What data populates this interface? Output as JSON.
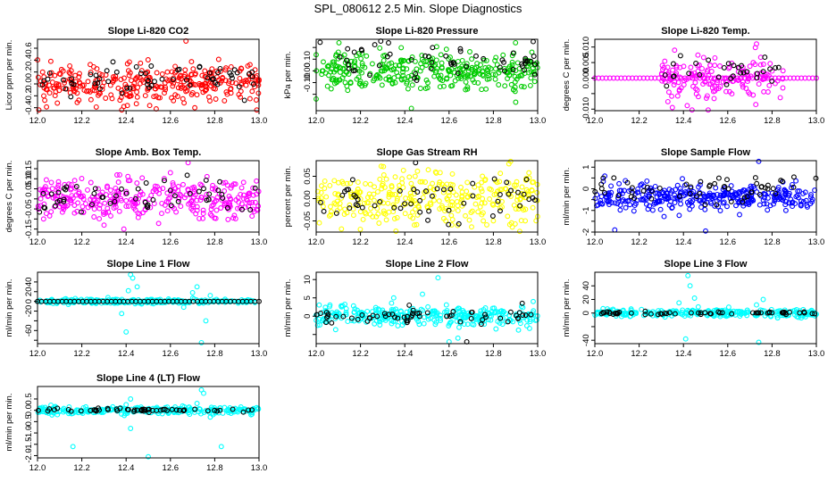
{
  "figure": {
    "title": "SPL_080612  2.5 Min. Slope Diagnostics"
  },
  "chart_data": [
    {
      "type": "scatter",
      "title": "Slope Li-820 CO2",
      "xlabel": "",
      "ylabel": "Licor ppm per min.",
      "xlim": [
        12.0,
        13.0
      ],
      "ylim": [
        -0.45,
        0.75
      ],
      "xticks": [
        "12.0",
        "12.2",
        "12.4",
        "12.6",
        "12.8",
        "13.0"
      ],
      "yticks": [
        -0.4,
        -0.2,
        0.0,
        0.2,
        0.4,
        0.6
      ],
      "ytick_labels": [
        "-0.4",
        "-0.2",
        "0.0",
        "0.2",
        "0.4",
        "0.6"
      ],
      "grid": false,
      "series": [
        {
          "color": "#ff0000",
          "x": [
            12.0,
            13.0
          ],
          "center": 0.0,
          "spread": 0.17,
          "count": 320,
          "seed": 11,
          "points": [
            [
              12.67,
              0.72
            ],
            [
              12.99,
              -0.44
            ],
            [
              12.06,
              0.38
            ],
            [
              12.71,
              -0.4
            ],
            [
              12.39,
              -0.38
            ]
          ]
        },
        {
          "color": "#000000",
          "x": [
            12.0,
            13.0
          ],
          "center": 0.05,
          "spread": 0.13,
          "count": 60,
          "seed": 12
        }
      ]
    },
    {
      "type": "scatter",
      "title": "Slope Li-820 Pressure",
      "xlabel": "",
      "ylabel": "kPa per min.",
      "xlim": [
        12.0,
        13.0
      ],
      "ylim": [
        -0.34,
        0.27
      ],
      "xticks": [
        "12.0",
        "12.2",
        "12.4",
        "12.6",
        "12.8",
        "13.0"
      ],
      "yticks": [
        -0.2,
        -0.1,
        0.0,
        0.1,
        0.2
      ],
      "ytick_labels": [
        "",
        "-0.10",
        "0.00",
        "0.10",
        ""
      ],
      "grid": false,
      "series": [
        {
          "color": "#00cc00",
          "x": [
            12.0,
            13.0
          ],
          "center": 0.0,
          "spread": 0.08,
          "count": 340,
          "seed": 21,
          "points": [
            [
              12.43,
              -0.32
            ],
            [
              12.0,
              -0.24
            ],
            [
              12.9,
              0.24
            ],
            [
              12.1,
              0.16
            ]
          ]
        },
        {
          "color": "#000000",
          "x": [
            12.0,
            13.0
          ],
          "center": 0.08,
          "spread": 0.07,
          "count": 55,
          "seed": 22,
          "points": [
            [
              12.98,
              0.25
            ]
          ]
        }
      ]
    },
    {
      "type": "scatter",
      "title": "Slope Li-820 Temp.",
      "xlabel": "",
      "ylabel": "degrees C per min.",
      "xlim": [
        12.0,
        13.0
      ],
      "ylim": [
        -0.0105,
        0.0125
      ],
      "xticks": [
        "12.0",
        "12.2",
        "12.4",
        "12.6",
        "12.8",
        "13.0"
      ],
      "yticks": [
        -0.01,
        -0.005,
        0.0,
        0.005,
        0.01
      ],
      "ytick_labels": [
        "-0.010",
        "",
        "0.000",
        "0.005",
        "0.010"
      ],
      "grid": false,
      "series": [
        {
          "color": "#ff00ff",
          "x": [
            12.0,
            13.0
          ],
          "center": 0.0,
          "spread": 0.0,
          "count": 60,
          "seed": 31,
          "line": true
        },
        {
          "color": "#ff00ff",
          "x": [
            12.3,
            12.85
          ],
          "center": 0.0,
          "spread": 0.0035,
          "count": 160,
          "seed": 32,
          "points": [
            [
              12.35,
              -0.0095
            ],
            [
              12.73,
              0.011
            ],
            [
              12.36,
              0.009
            ]
          ]
        },
        {
          "color": "#000000",
          "x": [
            12.3,
            12.85
          ],
          "center": 0.002,
          "spread": 0.003,
          "count": 30,
          "seed": 33
        }
      ]
    },
    {
      "type": "scatter",
      "title": "Slope Amb. Box Temp.",
      "xlabel": "",
      "ylabel": "degrees C per min.",
      "xlim": [
        12.0,
        13.0
      ],
      "ylim": [
        -0.165,
        0.19
      ],
      "xticks": [
        "12.0",
        "12.2",
        "12.4",
        "12.6",
        "12.8",
        "13.0"
      ],
      "yticks": [
        -0.15,
        -0.1,
        -0.05,
        0.0,
        0.05,
        0.1,
        0.15
      ],
      "ytick_labels": [
        "-0.15",
        "",
        "-0.05",
        "",
        "0.05",
        "0.10",
        "0.15"
      ],
      "grid": false,
      "series": [
        {
          "color": "#ff00ff",
          "x": [
            12.0,
            13.0
          ],
          "center": 0.0,
          "spread": 0.05,
          "count": 320,
          "seed": 41,
          "points": [
            [
              12.68,
              0.18
            ],
            [
              12.39,
              -0.15
            ]
          ]
        },
        {
          "color": "#000000",
          "x": [
            12.0,
            13.0
          ],
          "center": 0.0,
          "spread": 0.04,
          "count": 55,
          "seed": 42
        }
      ]
    },
    {
      "type": "scatter",
      "title": "Slope Gas Stream RH",
      "xlabel": "",
      "ylabel": "percent per min.",
      "xlim": [
        12.0,
        13.0
      ],
      "ylim": [
        -0.075,
        0.085
      ],
      "xticks": [
        "12.0",
        "12.2",
        "12.4",
        "12.6",
        "12.8",
        "13.0"
      ],
      "yticks": [
        -0.05,
        0.0,
        0.05
      ],
      "ytick_labels": [
        "-0.05",
        "0.00",
        "0.05"
      ],
      "grid": false,
      "series": [
        {
          "color": "#ffff00",
          "x": [
            12.0,
            13.0
          ],
          "center": 0.0,
          "spread": 0.03,
          "count": 320,
          "seed": 51,
          "points": [
            [
              12.36,
              -0.073
            ],
            [
              12.87,
              0.078
            ]
          ]
        },
        {
          "color": "#000000",
          "x": [
            12.0,
            13.0
          ],
          "center": 0.0,
          "spread": 0.025,
          "count": 55,
          "seed": 52
        }
      ]
    },
    {
      "type": "scatter",
      "title": "Slope Sample Flow",
      "xlabel": "",
      "ylabel": "ml/min per min.",
      "xlim": [
        12.0,
        13.0
      ],
      "ylim": [
        -2.0,
        1.3
      ],
      "xticks": [
        "12.0",
        "12.2",
        "12.4",
        "12.6",
        "12.8",
        "13.0"
      ],
      "yticks": [
        -2.0,
        -1.5,
        -1.0,
        -0.5,
        0.0,
        0.5,
        1.0
      ],
      "ytick_labels": [
        "-2",
        "",
        "-1",
        "",
        "0",
        "",
        "1"
      ],
      "grid": false,
      "series": [
        {
          "color": "#0000ff",
          "x": [
            12.0,
            13.0
          ],
          "center": -0.4,
          "spread": 0.3,
          "count": 340,
          "seed": 61,
          "points": [
            [
              12.5,
              -1.95
            ],
            [
              12.74,
              1.3
            ],
            [
              12.09,
              -1.9
            ]
          ]
        },
        {
          "color": "#000000",
          "x": [
            12.0,
            13.0
          ],
          "center": 0.0,
          "spread": 0.35,
          "count": 55,
          "seed": 62
        }
      ]
    },
    {
      "type": "scatter",
      "title": "Slope Line 1 Flow",
      "xlabel": "",
      "ylabel": "ml/min per min.",
      "xlim": [
        12.0,
        13.0
      ],
      "ylim": [
        -87,
        60
      ],
      "xticks": [
        "12.0",
        "12.2",
        "12.4",
        "12.6",
        "12.8",
        "13.0"
      ],
      "yticks": [
        -80,
        -60,
        -40,
        -20,
        0,
        20,
        40
      ],
      "ytick_labels": [
        "",
        "-60",
        "",
        "-20",
        "0",
        "20",
        "40"
      ],
      "grid": false,
      "series": [
        {
          "color": "#00ffff",
          "x": [
            12.0,
            13.0
          ],
          "center": 0.0,
          "spread": 2.5,
          "count": 260,
          "seed": 71,
          "points": [
            [
              12.42,
              55
            ],
            [
              12.43,
              48
            ],
            [
              12.4,
              -63
            ],
            [
              12.41,
              22
            ],
            [
              12.38,
              -25
            ],
            [
              12.45,
              30
            ],
            [
              12.72,
              30
            ],
            [
              12.74,
              -85
            ],
            [
              12.76,
              -40
            ],
            [
              12.7,
              18
            ],
            [
              12.66,
              -12
            ],
            [
              12.78,
              12
            ]
          ]
        },
        {
          "color": "#000000",
          "x": [
            12.0,
            13.0
          ],
          "center": 0.0,
          "spread": 0.0,
          "count": 55,
          "seed": 72
        }
      ]
    },
    {
      "type": "scatter",
      "title": "Slope Line 2 Flow",
      "xlabel": "",
      "ylabel": "ml/min per min.",
      "xlim": [
        12.0,
        13.0
      ],
      "ylim": [
        -7.5,
        12
      ],
      "xticks": [
        "12.0",
        "12.2",
        "12.4",
        "12.6",
        "12.8",
        "13.0"
      ],
      "yticks": [
        -5,
        0,
        5,
        10
      ],
      "ytick_labels": [
        "",
        "0",
        "5",
        "10"
      ],
      "grid": false,
      "series": [
        {
          "color": "#00ffff",
          "x": [
            12.0,
            13.0
          ],
          "center": 0.0,
          "spread": 1.3,
          "count": 320,
          "seed": 81,
          "points": [
            [
              12.55,
              10.5
            ],
            [
              12.6,
              -7
            ],
            [
              12.48,
              6
            ],
            [
              12.35,
              5
            ],
            [
              12.98,
              4
            ],
            [
              12.64,
              -6
            ]
          ]
        },
        {
          "color": "#000000",
          "x": [
            12.0,
            13.0
          ],
          "center": 0.0,
          "spread": 1.1,
          "count": 60,
          "seed": 82,
          "points": [
            [
              12.68,
              -7
            ],
            [
              12.42,
              3
            ]
          ]
        }
      ]
    },
    {
      "type": "scatter",
      "title": "Slope Line 3 Flow",
      "xlabel": "",
      "ylabel": "ml/min per min.",
      "xlim": [
        12.0,
        13.0
      ],
      "ylim": [
        -45,
        60
      ],
      "xticks": [
        "12.0",
        "12.2",
        "12.4",
        "12.6",
        "12.8",
        "13.0"
      ],
      "yticks": [
        -40,
        -20,
        0,
        20,
        40
      ],
      "ytick_labels": [
        "-40",
        "",
        "0",
        "20",
        "40"
      ],
      "grid": false,
      "series": [
        {
          "color": "#00ffff",
          "x": [
            12.0,
            13.0
          ],
          "center": 0.0,
          "spread": 3.0,
          "count": 280,
          "seed": 91,
          "points": [
            [
              12.42,
              55
            ],
            [
              12.43,
              40
            ],
            [
              12.41,
              -38
            ],
            [
              12.45,
              22
            ],
            [
              12.74,
              -43
            ],
            [
              12.76,
              20
            ],
            [
              12.73,
              12
            ],
            [
              12.38,
              15
            ]
          ]
        },
        {
          "color": "#000000",
          "x": [
            12.0,
            13.0
          ],
          "center": 0.0,
          "spread": 1.0,
          "count": 55,
          "seed": 92
        }
      ]
    },
    {
      "type": "scatter",
      "title": "Slope Line 4 (LT) Flow",
      "xlabel": "",
      "ylabel": "ml/min per min.",
      "xlim": [
        12.0,
        13.0
      ],
      "ylim": [
        -2.1,
        1.05
      ],
      "xticks": [
        "12.0",
        "12.2",
        "12.4",
        "12.6",
        "12.8",
        "13.0"
      ],
      "yticks": [
        -2.0,
        -1.5,
        -1.0,
        -0.5,
        0.0,
        0.5
      ],
      "ytick_labels": [
        "-2.0",
        "-1.5",
        "-1.0",
        "-0.5",
        "0.0",
        "0.5"
      ],
      "grid": false,
      "series": [
        {
          "color": "#00ffff",
          "x": [
            12.0,
            13.0
          ],
          "center": 0.0,
          "spread": 0.08,
          "count": 280,
          "seed": 101,
          "points": [
            [
              12.16,
              -1.6
            ],
            [
              12.5,
              -2.05
            ],
            [
              12.42,
              -0.8
            ],
            [
              12.42,
              0.5
            ],
            [
              12.74,
              0.9
            ],
            [
              12.75,
              0.75
            ],
            [
              12.78,
              -0.3
            ],
            [
              12.83,
              -1.6
            ],
            [
              12.4,
              0.25
            ],
            [
              12.72,
              0.3
            ]
          ]
        },
        {
          "color": "#000000",
          "x": [
            12.0,
            13.0
          ],
          "center": 0.0,
          "spread": 0.05,
          "count": 55,
          "seed": 102
        }
      ]
    }
  ]
}
